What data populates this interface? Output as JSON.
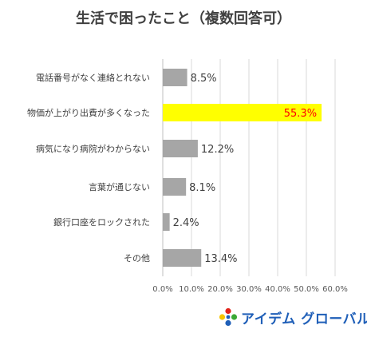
{
  "brand": {
    "name": "アイデム グローバル",
    "colors": {
      "blue": "#1f5fb8",
      "red": "#e2231a",
      "green": "#3aa935",
      "yellow": "#f6c400"
    }
  },
  "chart_data": {
    "type": "bar",
    "orientation": "horizontal",
    "title": "生活で困ったこと（複数回答可）",
    "xlabel": "",
    "ylabel": "",
    "categories": [
      "電話番号がなく連絡とれない",
      "物価が上がり出費が多くなった",
      "病気になり病院がわからない",
      "言葉が通じない",
      "銀行口座をロックされた",
      "その他"
    ],
    "values": [
      8.5,
      55.3,
      12.2,
      8.1,
      2.4,
      13.4
    ],
    "value_labels": [
      "8.5%",
      "55.3%",
      "12.2%",
      "8.1%",
      "2.4%",
      "13.4%"
    ],
    "bar_colors": [
      "#a6a6a6",
      "#ffff00",
      "#a6a6a6",
      "#a6a6a6",
      "#a6a6a6",
      "#a6a6a6"
    ],
    "highlight_label_color": "#ff0000",
    "label_color": "#404040",
    "xlim": [
      0,
      60
    ],
    "xticks": [
      0,
      10,
      20,
      30,
      40,
      50,
      60
    ],
    "xtick_labels": [
      "0.0%",
      "10.0%",
      "20.0%",
      "30.0%",
      "40.0%",
      "50.0%",
      "60.0%"
    ],
    "grid": true,
    "legend": "none"
  }
}
